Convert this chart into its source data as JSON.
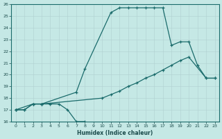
{
  "xlabel": "Humidex (Indice chaleur)",
  "xlim": [
    -0.5,
    23.5
  ],
  "ylim": [
    16,
    26
  ],
  "yticks": [
    16,
    17,
    18,
    19,
    20,
    21,
    22,
    23,
    24,
    25,
    26
  ],
  "xticks": [
    0,
    1,
    2,
    3,
    4,
    5,
    6,
    7,
    8,
    9,
    10,
    11,
    12,
    13,
    14,
    15,
    16,
    17,
    18,
    19,
    20,
    21,
    22,
    23
  ],
  "bg_color": "#c5e8e5",
  "line_color": "#1a6b6b",
  "line1_x": [
    0,
    1,
    2,
    3,
    4,
    5,
    6,
    7,
    8
  ],
  "line1_y": [
    17.0,
    17.0,
    17.5,
    17.5,
    17.5,
    17.5,
    17.0,
    16.0,
    16.0
  ],
  "line2_x": [
    0,
    1,
    2,
    3,
    7,
    8,
    11,
    12,
    13,
    14,
    15,
    16,
    17,
    18,
    19,
    20,
    21,
    22,
    23
  ],
  "line2_y": [
    17.0,
    17.0,
    17.5,
    17.5,
    18.5,
    20.5,
    25.3,
    25.7,
    25.7,
    25.7,
    25.7,
    25.7,
    25.7,
    22.5,
    22.8,
    22.8,
    20.8,
    19.7,
    19.7
  ],
  "line3_x": [
    0,
    2,
    3,
    10,
    11,
    12,
    13,
    14,
    15,
    16,
    17,
    18,
    19,
    20,
    22,
    23
  ],
  "line3_y": [
    17.0,
    17.5,
    17.5,
    18.0,
    18.3,
    18.6,
    19.0,
    19.3,
    19.7,
    20.0,
    20.4,
    20.8,
    21.2,
    21.5,
    19.7,
    19.7
  ]
}
